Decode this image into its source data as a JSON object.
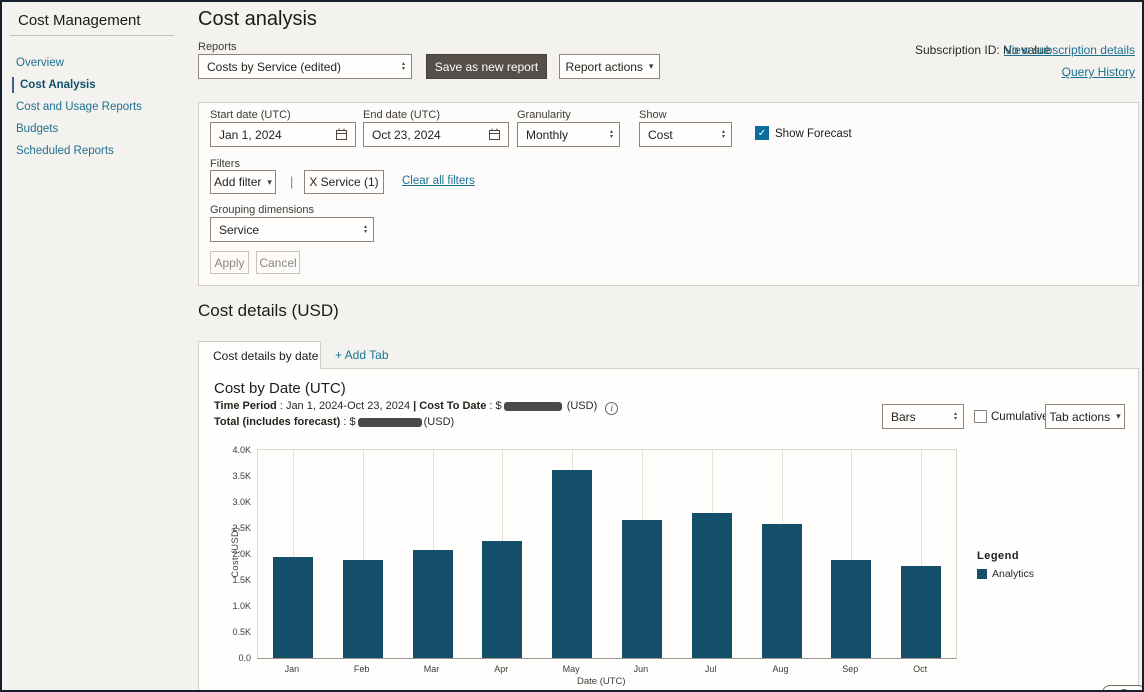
{
  "sidebar": {
    "title": "Cost Management",
    "items": [
      {
        "label": "Overview",
        "active": false
      },
      {
        "label": "Cost Analysis",
        "active": true
      },
      {
        "label": "Cost and Usage Reports",
        "active": false
      },
      {
        "label": "Budgets",
        "active": false
      },
      {
        "label": "Scheduled Reports",
        "active": false
      }
    ]
  },
  "header": {
    "title": "Cost analysis",
    "reports_label": "Reports",
    "report_select_value": "Costs by Service (edited)",
    "save_button": "Save as new report",
    "report_actions_button": "Report actions",
    "subscription_text": "Subscription ID: No value",
    "view_subscription_link": "View subscription details",
    "query_history_link": "Query History"
  },
  "filters": {
    "start_date_label": "Start date (UTC)",
    "start_date_value": "Jan 1, 2024",
    "end_date_label": "End date (UTC)",
    "end_date_value": "Oct 23, 2024",
    "granularity_label": "Granularity",
    "granularity_value": "Monthly",
    "show_label": "Show",
    "show_value": "Cost",
    "show_forecast_label": "Show Forecast",
    "show_forecast_checked": true,
    "filters_label": "Filters",
    "add_filter_button": "Add filter",
    "divider": "|",
    "service_filter_chip": "X Service (1)",
    "clear_all_link": "Clear all filters",
    "grouping_label": "Grouping dimensions",
    "grouping_value": "Service",
    "apply_button": "Apply",
    "cancel_button": "Cancel",
    "check_glyph": "✓"
  },
  "details": {
    "section_title": "Cost details (USD)",
    "active_tab": "Cost details by date",
    "add_tab_link": "+ Add Tab",
    "chart_title": "Cost by Date (UTC)",
    "meta": {
      "time_period_label": "Time Period",
      "colon": " : ",
      "time_period_value": "Jan 1, 2024-Oct 23, 2024",
      "divider": " | ",
      "cost_to_date_label": "Cost To Date",
      "currency": "$",
      "usd_suffix": "(USD)",
      "info_icon_glyph": "i",
      "total_label": "Total (includes forecast)"
    },
    "view_select_value": "Bars",
    "cumulative_label": "Cumulative",
    "tab_actions_button": "Tab actions",
    "legend_title": "Legend",
    "legend_series": "Analytics"
  },
  "chart_data": {
    "type": "bar",
    "title": "Cost by Date (UTC)",
    "categories": [
      "Jan",
      "Feb",
      "Mar",
      "Apr",
      "May",
      "Jun",
      "Jul",
      "Aug",
      "Sep",
      "Oct"
    ],
    "series": [
      {
        "name": "Analytics",
        "color": "#15506b",
        "values": [
          1950,
          1880,
          2070,
          2250,
          3620,
          2660,
          2780,
          2580,
          1880,
          1760
        ]
      }
    ],
    "xlabel": "Date (UTC)",
    "ylabel": "Cost (USD)",
    "ylim": [
      0,
      4000
    ],
    "yticks": [
      "0.0",
      "0.5K",
      "1.0K",
      "1.5K",
      "2.0K",
      "2.5K",
      "3.0K",
      "3.5K",
      "4.0K"
    ],
    "gridlines": "vertical",
    "legend_position": "right"
  },
  "colors": {
    "accent_teal_link": "#1a7292",
    "bar_fill": "#15506b",
    "checkbox_checked": "#0d6d9d",
    "dark_button": "#564f49"
  }
}
